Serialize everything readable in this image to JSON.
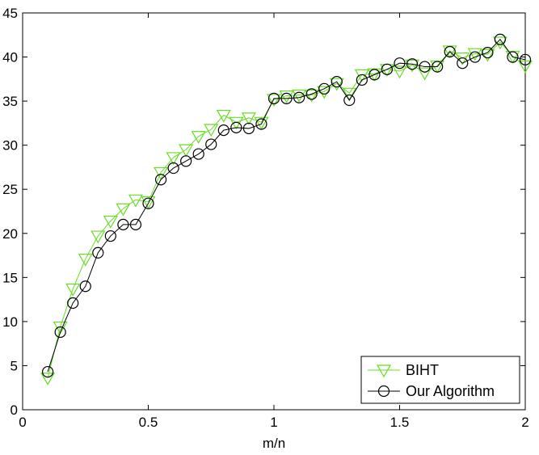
{
  "chart_data": {
    "type": "line",
    "title": "",
    "xlabel": "m/n",
    "ylabel": "",
    "xlim": [
      0,
      2
    ],
    "ylim": [
      0,
      45
    ],
    "xticks": [
      0,
      0.5,
      1,
      1.5,
      2
    ],
    "xtick_labels": [
      "0",
      "0.5",
      "1",
      "1.5",
      "2"
    ],
    "yticks": [
      0,
      5,
      10,
      15,
      20,
      25,
      30,
      35,
      40,
      45
    ],
    "ytick_labels": [
      "0",
      "5",
      "10",
      "15",
      "20",
      "25",
      "30",
      "35",
      "40",
      "45"
    ],
    "grid": false,
    "legend_position": "bottom-right",
    "x": [
      0.1,
      0.15,
      0.2,
      0.25,
      0.3,
      0.35,
      0.4,
      0.45,
      0.5,
      0.55,
      0.6,
      0.65,
      0.7,
      0.75,
      0.8,
      0.85,
      0.9,
      0.95,
      1.0,
      1.05,
      1.1,
      1.15,
      1.2,
      1.25,
      1.3,
      1.35,
      1.4,
      1.45,
      1.5,
      1.55,
      1.6,
      1.65,
      1.7,
      1.75,
      1.8,
      1.85,
      1.9,
      1.95,
      2.0
    ],
    "series": [
      {
        "name": "BIHT",
        "color": "#66dd22",
        "marker": "triangle-down",
        "values": [
          3.6,
          9.4,
          13.7,
          17.1,
          19.7,
          21.4,
          22.8,
          23.8,
          23.6,
          26.9,
          28.6,
          29.5,
          31.0,
          31.8,
          33.4,
          32.6,
          33.1,
          32.6,
          35.2,
          35.6,
          35.7,
          35.7,
          36.1,
          37.0,
          35.9,
          38.0,
          38.1,
          38.6,
          38.4,
          39.1,
          38.2,
          39.0,
          40.7,
          39.9,
          40.4,
          40.3,
          41.7,
          40.1,
          39.0
        ]
      },
      {
        "name": "Our Algorithm",
        "color": "#000000",
        "marker": "circle",
        "values": [
          4.3,
          8.8,
          12.1,
          14.0,
          17.8,
          19.7,
          21.0,
          21.0,
          23.4,
          26.1,
          27.4,
          28.2,
          29.0,
          30.1,
          31.7,
          32.0,
          31.9,
          32.4,
          35.3,
          35.3,
          35.4,
          35.8,
          36.4,
          37.2,
          35.1,
          37.4,
          38.0,
          38.6,
          39.3,
          39.2,
          38.9,
          38.9,
          40.6,
          39.3,
          40.0,
          40.5,
          42.0,
          40.0,
          39.7
        ]
      }
    ]
  }
}
